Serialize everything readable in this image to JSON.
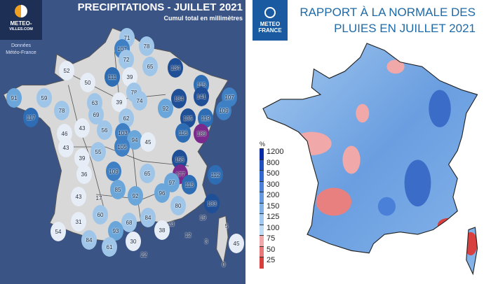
{
  "left_panel": {
    "title": "PRECIPITATIONS - JUILLET 2021",
    "subtitle": "Cumul total en millimètres",
    "logo": {
      "line1": "METEO-",
      "line2": "VILLES.COM"
    },
    "credit": {
      "line1": "Données",
      "line2": "Météo-France"
    },
    "unit": "mm",
    "stations": [
      "71",
      "107",
      "72",
      "78",
      "65",
      "134",
      "52",
      "111",
      "39",
      "50",
      "115",
      "141",
      "107",
      "134",
      "91",
      "59",
      "78",
      "74",
      "39",
      "92",
      "109",
      "117",
      "63",
      "69",
      "78",
      "135",
      "119",
      "62",
      "43",
      "56",
      "46",
      "116",
      "189",
      "103",
      "94",
      "45",
      "105",
      "43",
      "55",
      "39",
      "155",
      "109",
      "65",
      "36",
      "177",
      "112",
      "97",
      "115",
      "85",
      "92",
      "96",
      "43",
      "17",
      "133",
      "80",
      "60",
      "84",
      "31",
      "68",
      "19",
      "23",
      "93",
      "38",
      "54",
      "12",
      "5",
      "84",
      "30",
      "61",
      "3",
      "45",
      "22",
      "0"
    ]
  },
  "right_panel": {
    "title_line1": "RAPPORT À LA NORMALE DES",
    "title_line2": "PLUIES EN JUILLET 2021",
    "logo": {
      "line1": "METEO",
      "line2": "FRANCE"
    },
    "legend": {
      "unit": "%",
      "labels": [
        "1200",
        "800",
        "500",
        "300",
        "200",
        "150",
        "125",
        "100",
        "75",
        "50",
        "25"
      ],
      "colors": [
        "#0a2aa8",
        "#2050c0",
        "#3068d0",
        "#4a80d8",
        "#6498e0",
        "#80b0e8",
        "#a0c8f0",
        "#c0dcf4",
        "#f0a8a8",
        "#e87878",
        "#d84040"
      ]
    }
  },
  "colors": {
    "left_bg": "#3b5486",
    "land": "#d8d8d8",
    "purple": "#7a2a8c"
  }
}
